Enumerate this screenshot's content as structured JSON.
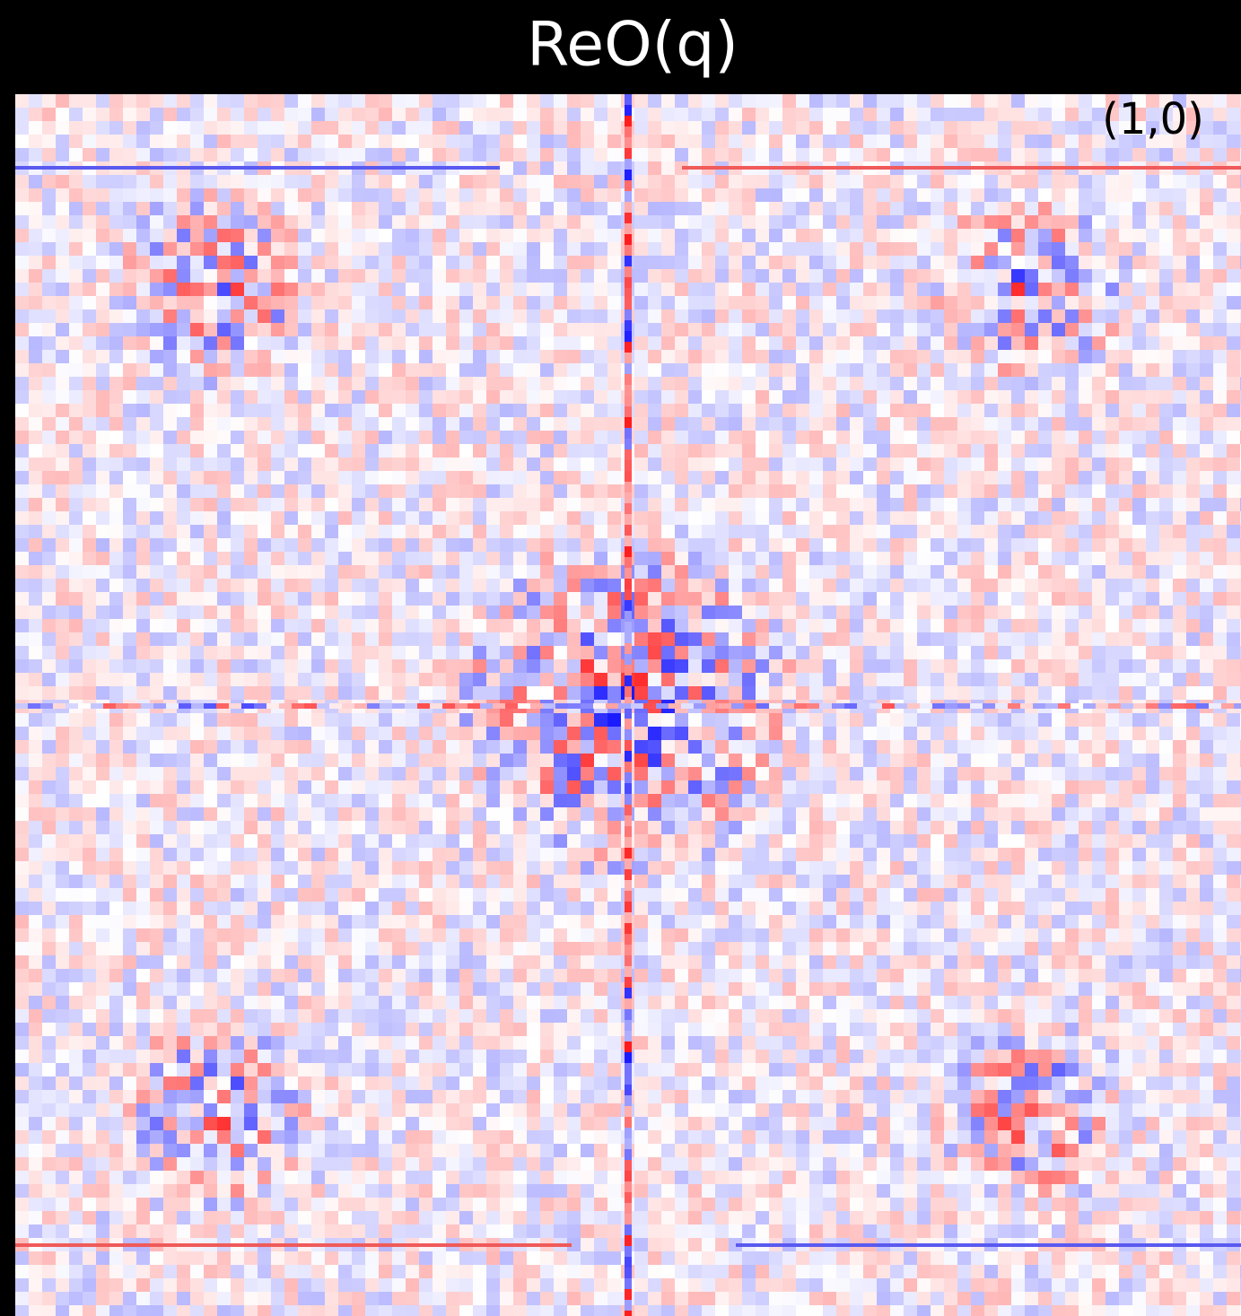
{
  "header": {
    "title": "ReO(q)"
  },
  "panel": {
    "label": "(1,0)"
  }
}
